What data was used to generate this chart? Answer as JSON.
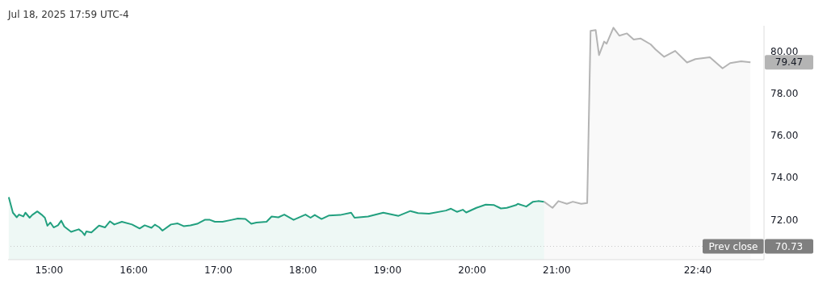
{
  "chart_data": {
    "type": "area",
    "title": "Jul 18, 2025 17:59 UTC-4",
    "xlim": [
      14.515,
      23.45
    ],
    "ylim": [
      70.1,
      81.2
    ],
    "xticks": [
      {
        "value": 15,
        "label": "15:00"
      },
      {
        "value": 16,
        "label": "16:00"
      },
      {
        "value": 17,
        "label": "17:00"
      },
      {
        "value": 18,
        "label": "18:00"
      },
      {
        "value": 19,
        "label": "19:00"
      },
      {
        "value": 20,
        "label": "20:00"
      },
      {
        "value": 21,
        "label": "21:00"
      },
      {
        "value": 22.667,
        "label": "22:40"
      }
    ],
    "yticks": [
      {
        "value": 72,
        "label": "72.00"
      },
      {
        "value": 74,
        "label": "74.00"
      },
      {
        "value": 76,
        "label": "76.00"
      },
      {
        "value": 78,
        "label": "78.00"
      },
      {
        "value": 80,
        "label": "80.00"
      }
    ],
    "series": [
      {
        "color": "#22a07f",
        "x": [
          14.523,
          14.572,
          14.618,
          14.644,
          14.695,
          14.72,
          14.77,
          14.8,
          14.86,
          14.91,
          14.95,
          14.98,
          15.015,
          15.054,
          15.105,
          15.144,
          15.18,
          15.26,
          15.35,
          15.39,
          15.42,
          15.44,
          15.5,
          15.59,
          15.66,
          15.72,
          15.77,
          15.86,
          15.98,
          16.07,
          16.13,
          16.21,
          16.25,
          16.3,
          16.34,
          16.44,
          16.52,
          16.59,
          16.67,
          16.75,
          16.84,
          16.9,
          16.96,
          17.05,
          17.16,
          17.23,
          17.32,
          17.39,
          17.45,
          17.57,
          17.63,
          17.71,
          17.78,
          17.89,
          18.03,
          18.09,
          18.14,
          18.22,
          18.31,
          18.44,
          18.57,
          18.61,
          18.77,
          18.95,
          19.13,
          19.27,
          19.36,
          19.49,
          19.69,
          19.75,
          19.82,
          19.89,
          19.93,
          20.05,
          20.16,
          20.26,
          20.34,
          20.41,
          20.52,
          20.54,
          20.64,
          20.72,
          20.78,
          20.85
        ],
        "values": [
          73.07,
          72.33,
          72.11,
          72.24,
          72.15,
          72.33,
          72.09,
          72.22,
          72.39,
          72.24,
          72.09,
          71.71,
          71.86,
          71.63,
          71.73,
          71.95,
          71.67,
          71.42,
          71.54,
          71.42,
          71.26,
          71.44,
          71.39,
          71.72,
          71.63,
          71.92,
          71.77,
          71.9,
          71.77,
          71.58,
          71.73,
          71.61,
          71.76,
          71.64,
          71.48,
          71.77,
          71.82,
          71.69,
          71.73,
          71.8,
          71.99,
          71.99,
          71.9,
          71.9,
          71.99,
          72.05,
          72.03,
          71.8,
          71.86,
          71.9,
          72.15,
          72.11,
          72.24,
          71.99,
          72.24,
          72.09,
          72.22,
          72.03,
          72.2,
          72.22,
          72.33,
          72.09,
          72.15,
          72.33,
          72.18,
          72.41,
          72.31,
          72.28,
          72.43,
          72.52,
          72.37,
          72.47,
          72.34,
          72.56,
          72.71,
          72.69,
          72.53,
          72.56,
          72.69,
          72.75,
          72.62,
          72.85,
          72.88,
          72.85
        ]
      },
      {
        "color": "#b4b4b4",
        "x": [
          20.85,
          20.95,
          21.02,
          21.12,
          21.19,
          21.29,
          21.36,
          21.4,
          21.46,
          21.5,
          21.56,
          21.59,
          21.67,
          21.74,
          21.83,
          21.91,
          21.99,
          22.11,
          22.17,
          22.27,
          22.4,
          22.54,
          22.64,
          22.81,
          22.96,
          23.05,
          23.18,
          23.29
        ],
        "values": [
          72.85,
          72.56,
          72.88,
          72.75,
          72.85,
          72.75,
          72.79,
          80.96,
          81.0,
          79.81,
          80.45,
          80.35,
          81.11,
          80.73,
          80.84,
          80.55,
          80.6,
          80.32,
          80.07,
          79.73,
          80.01,
          79.46,
          79.62,
          79.71,
          79.18,
          79.43,
          79.52,
          79.47
        ]
      }
    ],
    "ref_lines": [
      {
        "axis": "y",
        "value": 70.73,
        "label": "Prev close",
        "color": "#c8c8c8",
        "line_style": "dotted"
      }
    ],
    "annotations": [
      {
        "text": "79.47",
        "x": 23.29,
        "y": 79.47
      },
      "70.73"
    ],
    "grid": false,
    "legend": false,
    "marker": "none",
    "line_style": "solid"
  }
}
